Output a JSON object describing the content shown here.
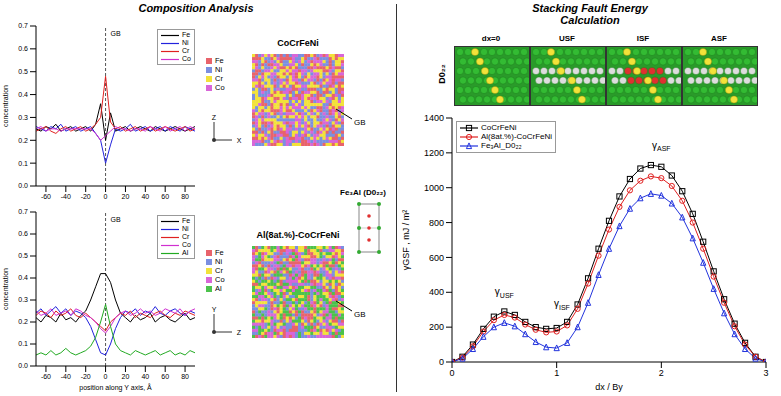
{
  "title_left": "Composition Analysis",
  "title_right": "Stacking Fault Energy Calculation",
  "chart_data": [
    {
      "type": "line",
      "y_label": "concentration",
      "xlim": [
        -70,
        90
      ],
      "xticks": [
        -60,
        -40,
        -20,
        0,
        20,
        40,
        60,
        80
      ],
      "ylim": [
        0,
        0.7
      ],
      "yticks": [
        {
          "value": 0,
          "label": "0.0"
        },
        0.1,
        0.2,
        0.3,
        0.4,
        0.5,
        0.6,
        0.7
      ],
      "grid": false,
      "legend": "top right",
      "annotations": [
        {
          "text": "GB",
          "x": 0
        }
      ],
      "x": [
        -70,
        -65,
        -60,
        -55,
        -50,
        -45,
        -40,
        -35,
        -30,
        -25,
        -20,
        -15,
        -10,
        -5,
        0,
        5,
        10,
        15,
        20,
        25,
        30,
        35,
        40,
        45,
        50,
        55,
        60,
        65,
        70,
        75,
        80,
        85,
        90
      ],
      "series": [
        {
          "name": "Fe",
          "color": "#000000",
          "values": [
            0.25,
            0.24,
            0.26,
            0.25,
            0.27,
            0.24,
            0.25,
            0.26,
            0.24,
            0.25,
            0.26,
            0.24,
            0.27,
            0.36,
            0.2,
            0.32,
            0.24,
            0.25,
            0.26,
            0.24,
            0.25,
            0.26,
            0.25,
            0.24,
            0.26,
            0.25,
            0.24,
            0.25,
            0.26,
            0.25,
            0.24,
            0.25,
            0.26
          ]
        },
        {
          "name": "Ni",
          "color": "#2222dd",
          "values": [
            0.26,
            0.25,
            0.24,
            0.26,
            0.25,
            0.27,
            0.24,
            0.25,
            0.26,
            0.24,
            0.25,
            0.26,
            0.23,
            0.2,
            0.1,
            0.18,
            0.25,
            0.24,
            0.25,
            0.27,
            0.24,
            0.25,
            0.26,
            0.24,
            0.25,
            0.26,
            0.24,
            0.26,
            0.25,
            0.24,
            0.26,
            0.25,
            0.24
          ]
        },
        {
          "name": "Cr",
          "color": "#e02020",
          "values": [
            0.24,
            0.25,
            0.26,
            0.24,
            0.23,
            0.25,
            0.26,
            0.24,
            0.25,
            0.26,
            0.24,
            0.25,
            0.27,
            0.3,
            0.48,
            0.28,
            0.25,
            0.26,
            0.24,
            0.25,
            0.26,
            0.24,
            0.25,
            0.26,
            0.24,
            0.25,
            0.26,
            0.25,
            0.24,
            0.25,
            0.26,
            0.24,
            0.25
          ]
        },
        {
          "name": "Co",
          "color": "#d030d0",
          "values": [
            0.25,
            0.26,
            0.24,
            0.25,
            0.25,
            0.24,
            0.25,
            0.25,
            0.25,
            0.25,
            0.25,
            0.25,
            0.23,
            0.2,
            0.22,
            0.24,
            0.26,
            0.25,
            0.25,
            0.24,
            0.25,
            0.25,
            0.24,
            0.26,
            0.25,
            0.24,
            0.26,
            0.24,
            0.25,
            0.26,
            0.24,
            0.26,
            0.25
          ]
        }
      ]
    },
    {
      "type": "line",
      "y_label": "concentration",
      "x_label": "position along Y axis, Å",
      "xlim": [
        -70,
        90
      ],
      "xticks": [
        -60,
        -40,
        -20,
        0,
        20,
        40,
        60,
        80
      ],
      "ylim": [
        0,
        0.7
      ],
      "yticks": [
        {
          "value": 0,
          "label": "0.0"
        },
        0.1,
        0.2,
        0.3,
        0.4,
        0.5,
        0.6,
        0.7
      ],
      "grid": false,
      "legend": "top right",
      "annotations": [
        {
          "text": "GB",
          "x": 0
        }
      ],
      "x": [
        -70,
        -65,
        -60,
        -55,
        -50,
        -45,
        -40,
        -35,
        -30,
        -25,
        -20,
        -15,
        -10,
        -5,
        0,
        5,
        10,
        15,
        20,
        25,
        30,
        35,
        40,
        45,
        50,
        55,
        60,
        65,
        70,
        75,
        80,
        85,
        90
      ],
      "series": [
        {
          "name": "Fe",
          "color": "#000000",
          "values": [
            0.22,
            0.2,
            0.23,
            0.22,
            0.2,
            0.24,
            0.21,
            0.22,
            0.2,
            0.23,
            0.25,
            0.3,
            0.36,
            0.42,
            0.42,
            0.38,
            0.3,
            0.24,
            0.22,
            0.2,
            0.23,
            0.21,
            0.22,
            0.24,
            0.2,
            0.22,
            0.23,
            0.21,
            0.2,
            0.22,
            0.24,
            0.21,
            0.22
          ]
        },
        {
          "name": "Ni",
          "color": "#2222dd",
          "values": [
            0.24,
            0.26,
            0.23,
            0.25,
            0.27,
            0.24,
            0.26,
            0.23,
            0.25,
            0.24,
            0.22,
            0.18,
            0.12,
            0.06,
            0.05,
            0.1,
            0.17,
            0.22,
            0.25,
            0.24,
            0.26,
            0.23,
            0.25,
            0.24,
            0.27,
            0.24,
            0.23,
            0.25,
            0.26,
            0.24,
            0.23,
            0.25,
            0.24
          ]
        },
        {
          "name": "Cr",
          "color": "#e02020",
          "values": [
            0.23,
            0.25,
            0.24,
            0.22,
            0.25,
            0.23,
            0.24,
            0.26,
            0.23,
            0.22,
            0.24,
            0.22,
            0.2,
            0.18,
            0.16,
            0.2,
            0.22,
            0.24,
            0.23,
            0.25,
            0.22,
            0.24,
            0.23,
            0.22,
            0.24,
            0.25,
            0.23,
            0.22,
            0.24,
            0.23,
            0.25,
            0.24,
            0.23
          ]
        },
        {
          "name": "Co",
          "color": "#d030d0",
          "values": [
            0.25,
            0.23,
            0.24,
            0.26,
            0.23,
            0.24,
            0.25,
            0.23,
            0.26,
            0.25,
            0.23,
            0.22,
            0.2,
            0.17,
            0.15,
            0.18,
            0.22,
            0.24,
            0.25,
            0.23,
            0.24,
            0.26,
            0.24,
            0.25,
            0.23,
            0.24,
            0.26,
            0.25,
            0.24,
            0.26,
            0.23,
            0.25,
            0.26
          ]
        },
        {
          "name": "Al",
          "color": "#22aa22",
          "values": [
            0.05,
            0.06,
            0.05,
            0.07,
            0.05,
            0.06,
            0.08,
            0.06,
            0.05,
            0.06,
            0.07,
            0.09,
            0.13,
            0.2,
            0.28,
            0.18,
            0.1,
            0.07,
            0.06,
            0.05,
            0.07,
            0.06,
            0.05,
            0.06,
            0.07,
            0.05,
            0.06,
            0.07,
            0.05,
            0.06,
            0.05,
            0.07,
            0.06
          ]
        }
      ]
    },
    {
      "type": "line",
      "y_label": "γGSF , mJ / m²",
      "x_label": "dx / By",
      "xlim": [
        0,
        3
      ],
      "xticks": [
        0,
        1,
        2,
        3
      ],
      "ylim": [
        0,
        1400
      ],
      "yticks": [
        0,
        200,
        400,
        600,
        800,
        1000,
        1200,
        1400
      ],
      "grid": false,
      "legend": "top left",
      "annotations": [
        {
          "text": "γUSF",
          "x": 0.5,
          "y": 400
        },
        {
          "text": "γISF",
          "x": 1.05,
          "y": 330
        },
        {
          "text": "γASF",
          "x": 2.0,
          "y": 1240
        }
      ],
      "x": [
        0,
        0.1,
        0.2,
        0.3,
        0.4,
        0.5,
        0.6,
        0.7,
        0.8,
        0.9,
        1.0,
        1.1,
        1.2,
        1.3,
        1.4,
        1.5,
        1.6,
        1.7,
        1.8,
        1.9,
        2.0,
        2.1,
        2.2,
        2.3,
        2.4,
        2.5,
        2.6,
        2.7,
        2.8,
        2.9,
        3.0
      ],
      "series": [
        {
          "name": "CoCrFeNi",
          "color": "#000000",
          "marker": "square",
          "line_style": "solid",
          "values": [
            0,
            30,
            100,
            190,
            260,
            290,
            270,
            230,
            200,
            190,
            195,
            230,
            330,
            480,
            650,
            810,
            950,
            1050,
            1110,
            1130,
            1120,
            1070,
            980,
            850,
            690,
            520,
            360,
            220,
            110,
            30,
            0
          ]
        },
        {
          "name": "Al(8at.%)-CoCrFeNi",
          "color": "#e02020",
          "marker": "circle",
          "line_style": "solid",
          "values": [
            0,
            25,
            90,
            175,
            240,
            270,
            255,
            215,
            185,
            170,
            175,
            210,
            305,
            450,
            610,
            760,
            890,
            985,
            1040,
            1065,
            1055,
            1010,
            925,
            800,
            650,
            490,
            340,
            205,
            100,
            30,
            0
          ]
        },
        {
          "name": "Fe₃Al_D0₂₂",
          "color": "#2233dd",
          "marker": "triangle",
          "line_style": "solid",
          "values": [
            0,
            20,
            75,
            145,
            200,
            225,
            205,
            160,
            115,
            85,
            80,
            110,
            200,
            340,
            500,
            650,
            780,
            880,
            940,
            965,
            955,
            910,
            830,
            710,
            570,
            420,
            280,
            160,
            75,
            20,
            0
          ]
        }
      ]
    }
  ],
  "snapshots": [
    {
      "label": "CoCrFeNi",
      "legend": [
        "Fe",
        "Ni",
        "Cr",
        "Co"
      ],
      "colors": [
        "#e8636b",
        "#7b8fe0",
        "#f2e23a",
        "#d866d8"
      ],
      "annotation": "GB",
      "axes": [
        "Z",
        "X"
      ]
    },
    {
      "label": "Al(8at.%)-CoCrFeNi",
      "legend": [
        "Fe",
        "Ni",
        "Cr",
        "Co",
        "Al"
      ],
      "colors": [
        "#e8636b",
        "#7b8fe0",
        "#f2e23a",
        "#d866d8",
        "#4cc24c"
      ],
      "annotation": "GB",
      "axes": [
        "Y",
        "Z"
      ],
      "inset": "Fe₃Al (D0₂₂)"
    }
  ],
  "sfe_panels": {
    "row_label": "D0₂₂",
    "columns": [
      "dx=0",
      "USF",
      "ISF",
      "ASF"
    ]
  }
}
